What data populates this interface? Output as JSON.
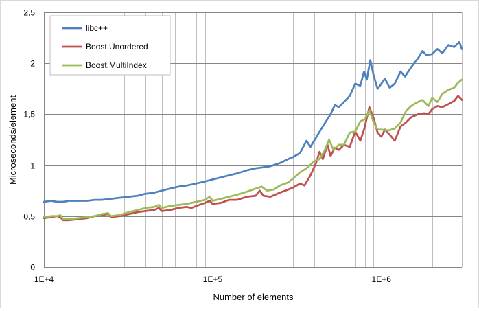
{
  "chart_data": {
    "type": "line",
    "x_scale": "log",
    "xlabel": "Number of elements",
    "ylabel": "Microseconds/element",
    "xlim": [
      10000,
      3000000
    ],
    "ylim": [
      0,
      2.5
    ],
    "x_ticks": [
      {
        "value": 10000,
        "label": "1E+4"
      },
      {
        "value": 100000,
        "label": "1E+5"
      },
      {
        "value": 1000000,
        "label": "1E+6"
      }
    ],
    "y_ticks": [
      {
        "value": 0,
        "label": "0"
      },
      {
        "value": 0.5,
        "label": "0,5"
      },
      {
        "value": 1,
        "label": "1"
      },
      {
        "value": 1.5,
        "label": "1,5"
      },
      {
        "value": 2,
        "label": "2"
      },
      {
        "value": 2.5,
        "label": "2,5"
      }
    ],
    "grid": {
      "horizontal": true,
      "vertical_log_minor": true
    },
    "legend_position": "top-left",
    "series": [
      {
        "name": "libc++",
        "color": "#4f81bd",
        "points": [
          [
            10000,
            0.64
          ],
          [
            11000,
            0.65
          ],
          [
            12000,
            0.64
          ],
          [
            13000,
            0.64
          ],
          [
            14000,
            0.65
          ],
          [
            16000,
            0.65
          ],
          [
            18000,
            0.65
          ],
          [
            20000,
            0.66
          ],
          [
            22000,
            0.66
          ],
          [
            25000,
            0.67
          ],
          [
            28000,
            0.68
          ],
          [
            32000,
            0.69
          ],
          [
            36000,
            0.7
          ],
          [
            40000,
            0.72
          ],
          [
            45000,
            0.73
          ],
          [
            50000,
            0.75
          ],
          [
            56000,
            0.77
          ],
          [
            63000,
            0.79
          ],
          [
            70000,
            0.8
          ],
          [
            80000,
            0.82
          ],
          [
            90000,
            0.84
          ],
          [
            100000,
            0.86
          ],
          [
            112000,
            0.88
          ],
          [
            125000,
            0.9
          ],
          [
            140000,
            0.92
          ],
          [
            160000,
            0.95
          ],
          [
            180000,
            0.97
          ],
          [
            200000,
            0.98
          ],
          [
            220000,
            0.99
          ],
          [
            250000,
            1.02
          ],
          [
            280000,
            1.06
          ],
          [
            300000,
            1.08
          ],
          [
            330000,
            1.12
          ],
          [
            360000,
            1.24
          ],
          [
            380000,
            1.18
          ],
          [
            420000,
            1.3
          ],
          [
            450000,
            1.38
          ],
          [
            500000,
            1.5
          ],
          [
            530000,
            1.59
          ],
          [
            560000,
            1.57
          ],
          [
            600000,
            1.62
          ],
          [
            650000,
            1.68
          ],
          [
            700000,
            1.8
          ],
          [
            750000,
            1.78
          ],
          [
            790000,
            1.92
          ],
          [
            820000,
            1.84
          ],
          [
            860000,
            2.03
          ],
          [
            900000,
            1.88
          ],
          [
            950000,
            1.75
          ],
          [
            1000000,
            1.8
          ],
          [
            1050000,
            1.85
          ],
          [
            1120000,
            1.76
          ],
          [
            1200000,
            1.8
          ],
          [
            1300000,
            1.92
          ],
          [
            1380000,
            1.87
          ],
          [
            1500000,
            1.96
          ],
          [
            1650000,
            2.05
          ],
          [
            1750000,
            2.12
          ],
          [
            1850000,
            2.08
          ],
          [
            2000000,
            2.09
          ],
          [
            2150000,
            2.14
          ],
          [
            2300000,
            2.1
          ],
          [
            2500000,
            2.18
          ],
          [
            2700000,
            2.16
          ],
          [
            2900000,
            2.21
          ],
          [
            3000000,
            2.14
          ]
        ]
      },
      {
        "name": "Boost.Unordered",
        "color": "#c0504d",
        "points": [
          [
            10000,
            0.48
          ],
          [
            11000,
            0.49
          ],
          [
            12000,
            0.5
          ],
          [
            12500,
            0.49
          ],
          [
            13000,
            0.46
          ],
          [
            14000,
            0.46
          ],
          [
            16000,
            0.47
          ],
          [
            18000,
            0.48
          ],
          [
            20000,
            0.5
          ],
          [
            22000,
            0.51
          ],
          [
            24000,
            0.52
          ],
          [
            25000,
            0.49
          ],
          [
            28000,
            0.5
          ],
          [
            32000,
            0.52
          ],
          [
            36000,
            0.54
          ],
          [
            40000,
            0.55
          ],
          [
            45000,
            0.56
          ],
          [
            48000,
            0.58
          ],
          [
            50000,
            0.55
          ],
          [
            56000,
            0.56
          ],
          [
            63000,
            0.58
          ],
          [
            70000,
            0.59
          ],
          [
            75000,
            0.58
          ],
          [
            80000,
            0.6
          ],
          [
            90000,
            0.63
          ],
          [
            96000,
            0.65
          ],
          [
            100000,
            0.62
          ],
          [
            112000,
            0.63
          ],
          [
            125000,
            0.66
          ],
          [
            140000,
            0.66
          ],
          [
            160000,
            0.69
          ],
          [
            180000,
            0.7
          ],
          [
            190000,
            0.75
          ],
          [
            200000,
            0.7
          ],
          [
            220000,
            0.69
          ],
          [
            250000,
            0.73
          ],
          [
            280000,
            0.76
          ],
          [
            300000,
            0.78
          ],
          [
            330000,
            0.82
          ],
          [
            350000,
            0.8
          ],
          [
            380000,
            0.9
          ],
          [
            410000,
            1.02
          ],
          [
            430000,
            1.13
          ],
          [
            450000,
            1.06
          ],
          [
            480000,
            1.2
          ],
          [
            500000,
            1.09
          ],
          [
            530000,
            1.17
          ],
          [
            560000,
            1.15
          ],
          [
            600000,
            1.2
          ],
          [
            650000,
            1.18
          ],
          [
            700000,
            1.33
          ],
          [
            750000,
            1.24
          ],
          [
            790000,
            1.35
          ],
          [
            850000,
            1.57
          ],
          [
            900000,
            1.46
          ],
          [
            950000,
            1.32
          ],
          [
            1000000,
            1.28
          ],
          [
            1050000,
            1.35
          ],
          [
            1120000,
            1.3
          ],
          [
            1200000,
            1.24
          ],
          [
            1300000,
            1.38
          ],
          [
            1400000,
            1.42
          ],
          [
            1500000,
            1.47
          ],
          [
            1650000,
            1.5
          ],
          [
            1800000,
            1.51
          ],
          [
            1900000,
            1.5
          ],
          [
            2000000,
            1.55
          ],
          [
            2150000,
            1.58
          ],
          [
            2300000,
            1.57
          ],
          [
            2500000,
            1.6
          ],
          [
            2700000,
            1.63
          ],
          [
            2850000,
            1.68
          ],
          [
            3000000,
            1.64
          ]
        ]
      },
      {
        "name": "Boost.MultiIndex",
        "color": "#9bbb59",
        "points": [
          [
            10000,
            0.49
          ],
          [
            11000,
            0.5
          ],
          [
            12000,
            0.5
          ],
          [
            12500,
            0.51
          ],
          [
            13000,
            0.47
          ],
          [
            14000,
            0.47
          ],
          [
            16000,
            0.48
          ],
          [
            18000,
            0.49
          ],
          [
            20000,
            0.5
          ],
          [
            22000,
            0.52
          ],
          [
            24000,
            0.53
          ],
          [
            25000,
            0.5
          ],
          [
            28000,
            0.51
          ],
          [
            32000,
            0.54
          ],
          [
            36000,
            0.56
          ],
          [
            40000,
            0.58
          ],
          [
            45000,
            0.59
          ],
          [
            48000,
            0.61
          ],
          [
            50000,
            0.58
          ],
          [
            56000,
            0.6
          ],
          [
            63000,
            0.61
          ],
          [
            70000,
            0.62
          ],
          [
            80000,
            0.64
          ],
          [
            90000,
            0.66
          ],
          [
            96000,
            0.69
          ],
          [
            100000,
            0.65
          ],
          [
            112000,
            0.67
          ],
          [
            125000,
            0.69
          ],
          [
            140000,
            0.71
          ],
          [
            160000,
            0.74
          ],
          [
            180000,
            0.77
          ],
          [
            195000,
            0.79
          ],
          [
            210000,
            0.75
          ],
          [
            230000,
            0.76
          ],
          [
            250000,
            0.8
          ],
          [
            280000,
            0.83
          ],
          [
            300000,
            0.87
          ],
          [
            330000,
            0.93
          ],
          [
            360000,
            0.97
          ],
          [
            400000,
            1.04
          ],
          [
            430000,
            1.06
          ],
          [
            460000,
            1.14
          ],
          [
            490000,
            1.25
          ],
          [
            520000,
            1.15
          ],
          [
            560000,
            1.2
          ],
          [
            600000,
            1.2
          ],
          [
            650000,
            1.32
          ],
          [
            700000,
            1.33
          ],
          [
            750000,
            1.43
          ],
          [
            800000,
            1.45
          ],
          [
            850000,
            1.54
          ],
          [
            900000,
            1.42
          ],
          [
            950000,
            1.35
          ],
          [
            1000000,
            1.35
          ],
          [
            1100000,
            1.34
          ],
          [
            1200000,
            1.36
          ],
          [
            1300000,
            1.42
          ],
          [
            1400000,
            1.53
          ],
          [
            1500000,
            1.58
          ],
          [
            1600000,
            1.61
          ],
          [
            1750000,
            1.64
          ],
          [
            1900000,
            1.58
          ],
          [
            2000000,
            1.66
          ],
          [
            2150000,
            1.62
          ],
          [
            2300000,
            1.7
          ],
          [
            2500000,
            1.74
          ],
          [
            2700000,
            1.76
          ],
          [
            2850000,
            1.81
          ],
          [
            3000000,
            1.84
          ]
        ]
      }
    ]
  }
}
